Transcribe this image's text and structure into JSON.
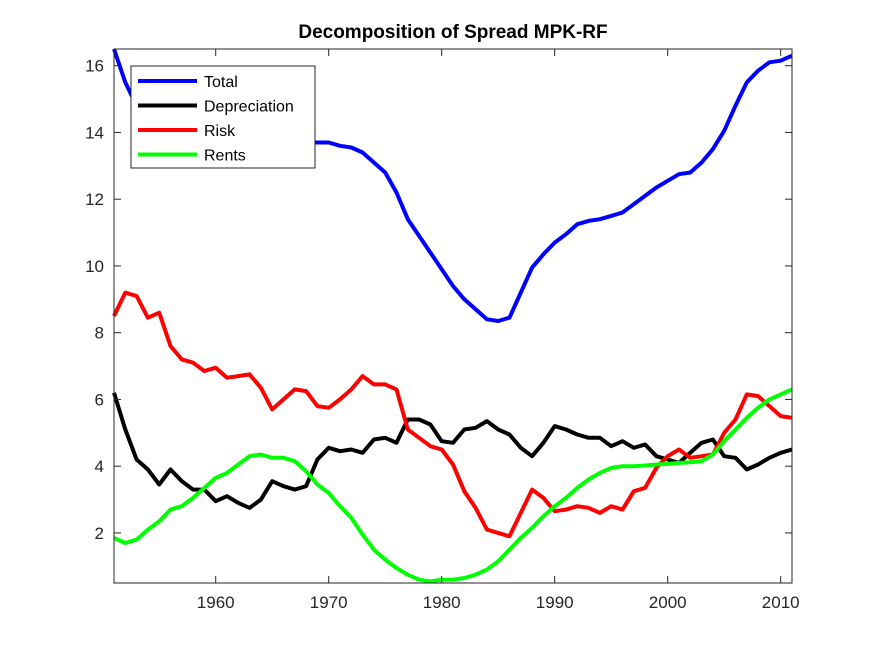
{
  "chart_data": {
    "type": "line",
    "title": "Decomposition of Spread MPK-RF",
    "xlabel": "",
    "ylabel": "",
    "xlim": [
      1951,
      2011
    ],
    "ylim": [
      0.5,
      16.5
    ],
    "xticks": [
      1960,
      1970,
      1980,
      1990,
      2000,
      2010
    ],
    "yticks": [
      2,
      4,
      6,
      8,
      10,
      12,
      14,
      16
    ],
    "grid": false,
    "legend_position": "top-left",
    "x": [
      1951,
      1952,
      1953,
      1954,
      1955,
      1956,
      1957,
      1958,
      1959,
      1960,
      1961,
      1962,
      1963,
      1964,
      1965,
      1966,
      1967,
      1968,
      1969,
      1970,
      1971,
      1972,
      1973,
      1974,
      1975,
      1976,
      1977,
      1978,
      1979,
      1980,
      1981,
      1982,
      1983,
      1984,
      1985,
      1986,
      1987,
      1988,
      1989,
      1990,
      1991,
      1992,
      1993,
      1994,
      1995,
      1996,
      1997,
      1998,
      1999,
      2000,
      2001,
      2002,
      2003,
      2004,
      2005,
      2006,
      2007,
      2008,
      2009,
      2010,
      2011
    ],
    "series": [
      {
        "name": "Total",
        "color": "#0000ff",
        "values": [
          16.5,
          15.5,
          14.8,
          14.4,
          14.2,
          14.0,
          13.9,
          13.85,
          13.8,
          13.75,
          13.7,
          13.7,
          13.7,
          13.7,
          13.7,
          13.7,
          13.7,
          13.7,
          13.7,
          13.7,
          13.6,
          13.55,
          13.4,
          13.1,
          12.8,
          12.2,
          11.4,
          10.9,
          10.4,
          9.9,
          9.4,
          9.0,
          8.7,
          8.4,
          8.35,
          8.45,
          9.2,
          9.95,
          10.35,
          10.7,
          10.95,
          11.25,
          11.35,
          11.4,
          11.5,
          11.6,
          11.85,
          12.1,
          12.35,
          12.55,
          12.75,
          12.8,
          13.1,
          13.5,
          14.05,
          14.8,
          15.5,
          15.85,
          16.1,
          16.15,
          16.3
        ]
      },
      {
        "name": "Depreciation",
        "color": "#000000",
        "values": [
          6.2,
          5.1,
          4.2,
          3.9,
          3.45,
          3.9,
          3.55,
          3.3,
          3.3,
          2.95,
          3.1,
          2.9,
          2.75,
          3.0,
          3.55,
          3.4,
          3.3,
          3.4,
          4.2,
          4.55,
          4.45,
          4.5,
          4.4,
          4.8,
          4.85,
          4.7,
          5.4,
          5.4,
          5.25,
          4.75,
          4.7,
          5.1,
          5.15,
          5.35,
          5.1,
          4.95,
          4.55,
          4.3,
          4.7,
          5.2,
          5.1,
          4.95,
          4.85,
          4.85,
          4.6,
          4.75,
          4.55,
          4.65,
          4.3,
          4.2,
          4.1,
          4.4,
          4.7,
          4.8,
          4.3,
          4.25,
          3.9,
          4.05,
          4.25,
          4.4,
          4.5
        ]
      },
      {
        "name": "Risk",
        "color": "#ff0000",
        "values": [
          8.5,
          9.2,
          9.1,
          8.45,
          8.6,
          7.6,
          7.2,
          7.1,
          6.85,
          6.95,
          6.65,
          6.7,
          6.75,
          6.35,
          5.7,
          6.0,
          6.3,
          6.25,
          5.8,
          5.75,
          6.0,
          6.3,
          6.7,
          6.45,
          6.45,
          6.3,
          5.1,
          4.85,
          4.6,
          4.5,
          4.05,
          3.25,
          2.75,
          2.1,
          2.0,
          1.9,
          2.6,
          3.3,
          3.05,
          2.65,
          2.7,
          2.8,
          2.75,
          2.6,
          2.8,
          2.7,
          3.25,
          3.35,
          3.95,
          4.3,
          4.5,
          4.25,
          4.3,
          4.35,
          5.0,
          5.4,
          6.15,
          6.1,
          5.8,
          5.5,
          5.45
        ]
      },
      {
        "name": "Rents",
        "color": "#00ff00",
        "values": [
          1.85,
          1.7,
          1.8,
          2.1,
          2.35,
          2.7,
          2.8,
          3.05,
          3.35,
          3.65,
          3.8,
          4.05,
          4.3,
          4.35,
          4.25,
          4.25,
          4.15,
          3.85,
          3.45,
          3.2,
          2.8,
          2.45,
          1.95,
          1.5,
          1.2,
          0.95,
          0.75,
          0.6,
          0.55,
          0.6,
          0.6,
          0.65,
          0.75,
          0.9,
          1.15,
          1.5,
          1.85,
          2.15,
          2.5,
          2.8,
          3.05,
          3.35,
          3.6,
          3.8,
          3.95,
          4.0,
          4.0,
          4.02,
          4.05,
          4.07,
          4.1,
          4.12,
          4.15,
          4.35,
          4.75,
          5.1,
          5.45,
          5.75,
          6.0,
          6.15,
          6.3
        ]
      }
    ]
  }
}
